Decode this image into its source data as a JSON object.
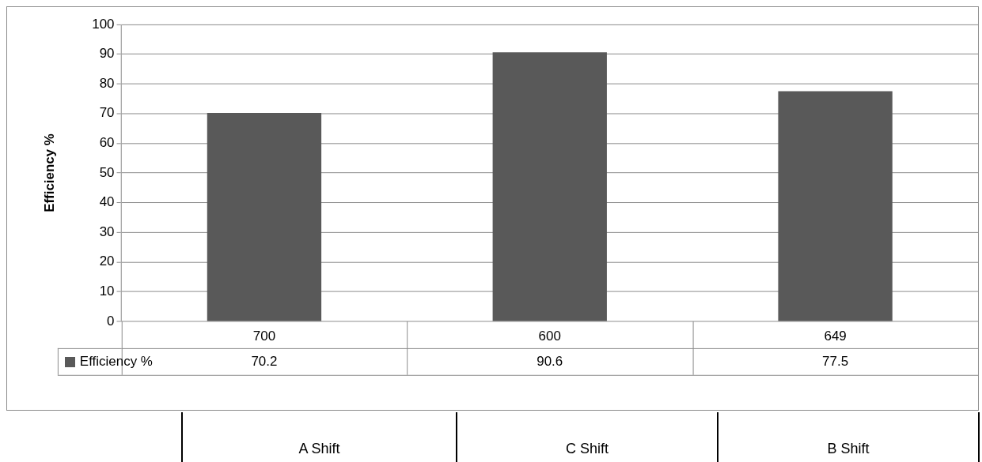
{
  "chart_data": {
    "type": "bar",
    "ylabel": "Efficiency %",
    "categories": [
      "700",
      "600",
      "649"
    ],
    "series": [
      {
        "name": "Efficiency %",
        "color": "#595959",
        "values": [
          70.2,
          90.6,
          77.5
        ]
      }
    ],
    "ylim": [
      0,
      100
    ],
    "yticks": [
      0,
      10,
      20,
      30,
      40,
      50,
      60,
      70,
      80,
      90,
      100
    ],
    "grid": "y",
    "data_labels": true,
    "annotations": [
      "A Shift",
      "C Shift",
      "B Shift"
    ]
  }
}
